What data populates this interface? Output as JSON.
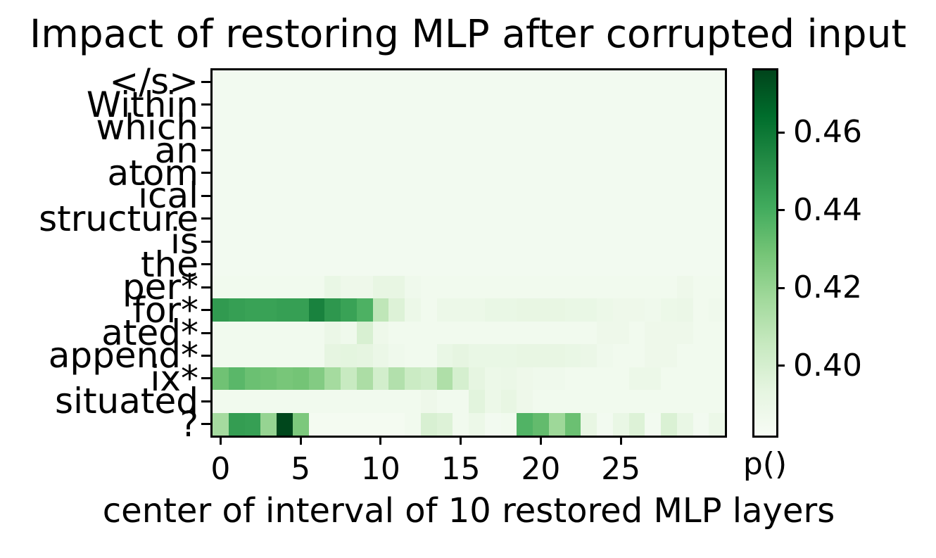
{
  "chart_data": {
    "type": "heatmap",
    "title": "Impact of restoring MLP after corrupted input",
    "xlabel": "center of interval of 10 restored MLP layers",
    "colorbar_label": "p()",
    "y_labels": [
      "</s>",
      "Within",
      "which",
      "an",
      "atom",
      "ical",
      "structure",
      "is",
      "the",
      "per*",
      "for*",
      "ated*",
      "append*",
      "ix*",
      "situated",
      "?"
    ],
    "n_cols": 32,
    "x_ticks": [
      0,
      5,
      10,
      15,
      20,
      25
    ],
    "colorbar_ticks": [
      0.46,
      0.44,
      0.42,
      0.4
    ],
    "vmin": 0.382,
    "vmax": 0.476,
    "colormap": "Greens",
    "colormap_anchors": [
      "#f7fcf5",
      "#e5f5e0",
      "#c7e9c0",
      "#a1d99b",
      "#74c476",
      "#41ab5d",
      "#238b45",
      "#006d2c",
      "#00441b"
    ],
    "legend_position": "right-colorbar",
    "grid": false,
    "values": [
      [
        0.385,
        0.385,
        0.385,
        0.385,
        0.385,
        0.385,
        0.385,
        0.385,
        0.385,
        0.385,
        0.385,
        0.385,
        0.385,
        0.385,
        0.385,
        0.385,
        0.385,
        0.385,
        0.385,
        0.385,
        0.385,
        0.385,
        0.385,
        0.385,
        0.385,
        0.385,
        0.385,
        0.385,
        0.385,
        0.385,
        0.385,
        0.385
      ],
      [
        0.385,
        0.385,
        0.385,
        0.385,
        0.385,
        0.385,
        0.385,
        0.385,
        0.385,
        0.385,
        0.385,
        0.385,
        0.385,
        0.385,
        0.385,
        0.385,
        0.385,
        0.385,
        0.385,
        0.385,
        0.385,
        0.385,
        0.385,
        0.385,
        0.385,
        0.385,
        0.385,
        0.385,
        0.385,
        0.385,
        0.385,
        0.385
      ],
      [
        0.385,
        0.385,
        0.385,
        0.385,
        0.385,
        0.385,
        0.385,
        0.385,
        0.385,
        0.385,
        0.385,
        0.385,
        0.385,
        0.385,
        0.385,
        0.385,
        0.385,
        0.385,
        0.385,
        0.385,
        0.385,
        0.385,
        0.385,
        0.385,
        0.385,
        0.385,
        0.385,
        0.385,
        0.385,
        0.385,
        0.385,
        0.385
      ],
      [
        0.385,
        0.385,
        0.385,
        0.385,
        0.385,
        0.385,
        0.385,
        0.385,
        0.385,
        0.385,
        0.385,
        0.385,
        0.385,
        0.385,
        0.385,
        0.385,
        0.385,
        0.385,
        0.385,
        0.385,
        0.385,
        0.385,
        0.385,
        0.385,
        0.385,
        0.385,
        0.385,
        0.385,
        0.385,
        0.385,
        0.385,
        0.385
      ],
      [
        0.385,
        0.385,
        0.385,
        0.385,
        0.385,
        0.385,
        0.385,
        0.385,
        0.385,
        0.385,
        0.385,
        0.385,
        0.385,
        0.385,
        0.385,
        0.385,
        0.385,
        0.385,
        0.385,
        0.385,
        0.385,
        0.385,
        0.385,
        0.385,
        0.385,
        0.385,
        0.385,
        0.385,
        0.385,
        0.385,
        0.385,
        0.385
      ],
      [
        0.385,
        0.385,
        0.385,
        0.385,
        0.385,
        0.385,
        0.385,
        0.385,
        0.385,
        0.385,
        0.385,
        0.385,
        0.385,
        0.385,
        0.385,
        0.385,
        0.385,
        0.385,
        0.385,
        0.385,
        0.385,
        0.385,
        0.385,
        0.385,
        0.385,
        0.385,
        0.385,
        0.385,
        0.385,
        0.385,
        0.385,
        0.385
      ],
      [
        0.385,
        0.385,
        0.385,
        0.385,
        0.385,
        0.385,
        0.385,
        0.385,
        0.385,
        0.385,
        0.385,
        0.385,
        0.385,
        0.385,
        0.385,
        0.385,
        0.385,
        0.385,
        0.385,
        0.385,
        0.385,
        0.385,
        0.385,
        0.385,
        0.385,
        0.385,
        0.385,
        0.385,
        0.385,
        0.385,
        0.385,
        0.385
      ],
      [
        0.385,
        0.385,
        0.385,
        0.385,
        0.385,
        0.385,
        0.385,
        0.385,
        0.385,
        0.385,
        0.385,
        0.385,
        0.385,
        0.385,
        0.385,
        0.385,
        0.385,
        0.385,
        0.385,
        0.385,
        0.385,
        0.385,
        0.385,
        0.385,
        0.385,
        0.385,
        0.385,
        0.385,
        0.385,
        0.385,
        0.385,
        0.385
      ],
      [
        0.385,
        0.385,
        0.385,
        0.385,
        0.385,
        0.385,
        0.385,
        0.385,
        0.385,
        0.385,
        0.385,
        0.385,
        0.385,
        0.385,
        0.385,
        0.385,
        0.385,
        0.385,
        0.385,
        0.385,
        0.385,
        0.385,
        0.385,
        0.385,
        0.385,
        0.385,
        0.385,
        0.385,
        0.385,
        0.385,
        0.385,
        0.385
      ],
      [
        0.386,
        0.386,
        0.386,
        0.386,
        0.386,
        0.386,
        0.386,
        0.391,
        0.388,
        0.388,
        0.392,
        0.392,
        0.387,
        0.386,
        0.386,
        0.386,
        0.386,
        0.386,
        0.386,
        0.386,
        0.386,
        0.386,
        0.386,
        0.386,
        0.386,
        0.386,
        0.386,
        0.386,
        0.386,
        0.388,
        0.386,
        0.386
      ],
      [
        0.447,
        0.445,
        0.444,
        0.444,
        0.445,
        0.445,
        0.456,
        0.448,
        0.444,
        0.438,
        0.408,
        0.397,
        0.389,
        0.386,
        0.389,
        0.389,
        0.389,
        0.391,
        0.391,
        0.392,
        0.392,
        0.392,
        0.391,
        0.391,
        0.389,
        0.388,
        0.388,
        0.387,
        0.389,
        0.39,
        0.386,
        0.387
      ],
      [
        0.386,
        0.386,
        0.386,
        0.386,
        0.386,
        0.386,
        0.386,
        0.39,
        0.387,
        0.399,
        0.388,
        0.386,
        0.386,
        0.386,
        0.386,
        0.386,
        0.386,
        0.386,
        0.386,
        0.386,
        0.386,
        0.386,
        0.386,
        0.386,
        0.388,
        0.388,
        0.386,
        0.388,
        0.388,
        0.388,
        0.386,
        0.386
      ],
      [
        0.386,
        0.386,
        0.386,
        0.386,
        0.386,
        0.386,
        0.386,
        0.393,
        0.394,
        0.393,
        0.39,
        0.387,
        0.386,
        0.386,
        0.391,
        0.393,
        0.391,
        0.391,
        0.391,
        0.392,
        0.392,
        0.392,
        0.391,
        0.39,
        0.387,
        0.386,
        0.386,
        0.388,
        0.388,
        0.386,
        0.386,
        0.386
      ],
      [
        0.43,
        0.435,
        0.431,
        0.43,
        0.428,
        0.429,
        0.425,
        0.416,
        0.405,
        0.414,
        0.401,
        0.412,
        0.404,
        0.402,
        0.413,
        0.4,
        0.393,
        0.389,
        0.39,
        0.388,
        0.387,
        0.387,
        0.386,
        0.386,
        0.386,
        0.386,
        0.389,
        0.389,
        0.386,
        0.386,
        0.386,
        0.386
      ],
      [
        0.386,
        0.386,
        0.386,
        0.386,
        0.386,
        0.386,
        0.386,
        0.386,
        0.386,
        0.386,
        0.386,
        0.386,
        0.386,
        0.388,
        0.386,
        0.386,
        0.395,
        0.389,
        0.392,
        0.388,
        0.386,
        0.386,
        0.386,
        0.386,
        0.386,
        0.386,
        0.386,
        0.386,
        0.386,
        0.386,
        0.386,
        0.386
      ],
      [
        0.416,
        0.446,
        0.445,
        0.42,
        0.475,
        0.427,
        0.384,
        0.384,
        0.384,
        0.384,
        0.384,
        0.384,
        0.386,
        0.399,
        0.397,
        0.386,
        0.389,
        0.385,
        0.386,
        0.437,
        0.433,
        0.418,
        0.431,
        0.392,
        0.385,
        0.391,
        0.397,
        0.385,
        0.398,
        0.391,
        0.385,
        0.389
      ]
    ]
  }
}
